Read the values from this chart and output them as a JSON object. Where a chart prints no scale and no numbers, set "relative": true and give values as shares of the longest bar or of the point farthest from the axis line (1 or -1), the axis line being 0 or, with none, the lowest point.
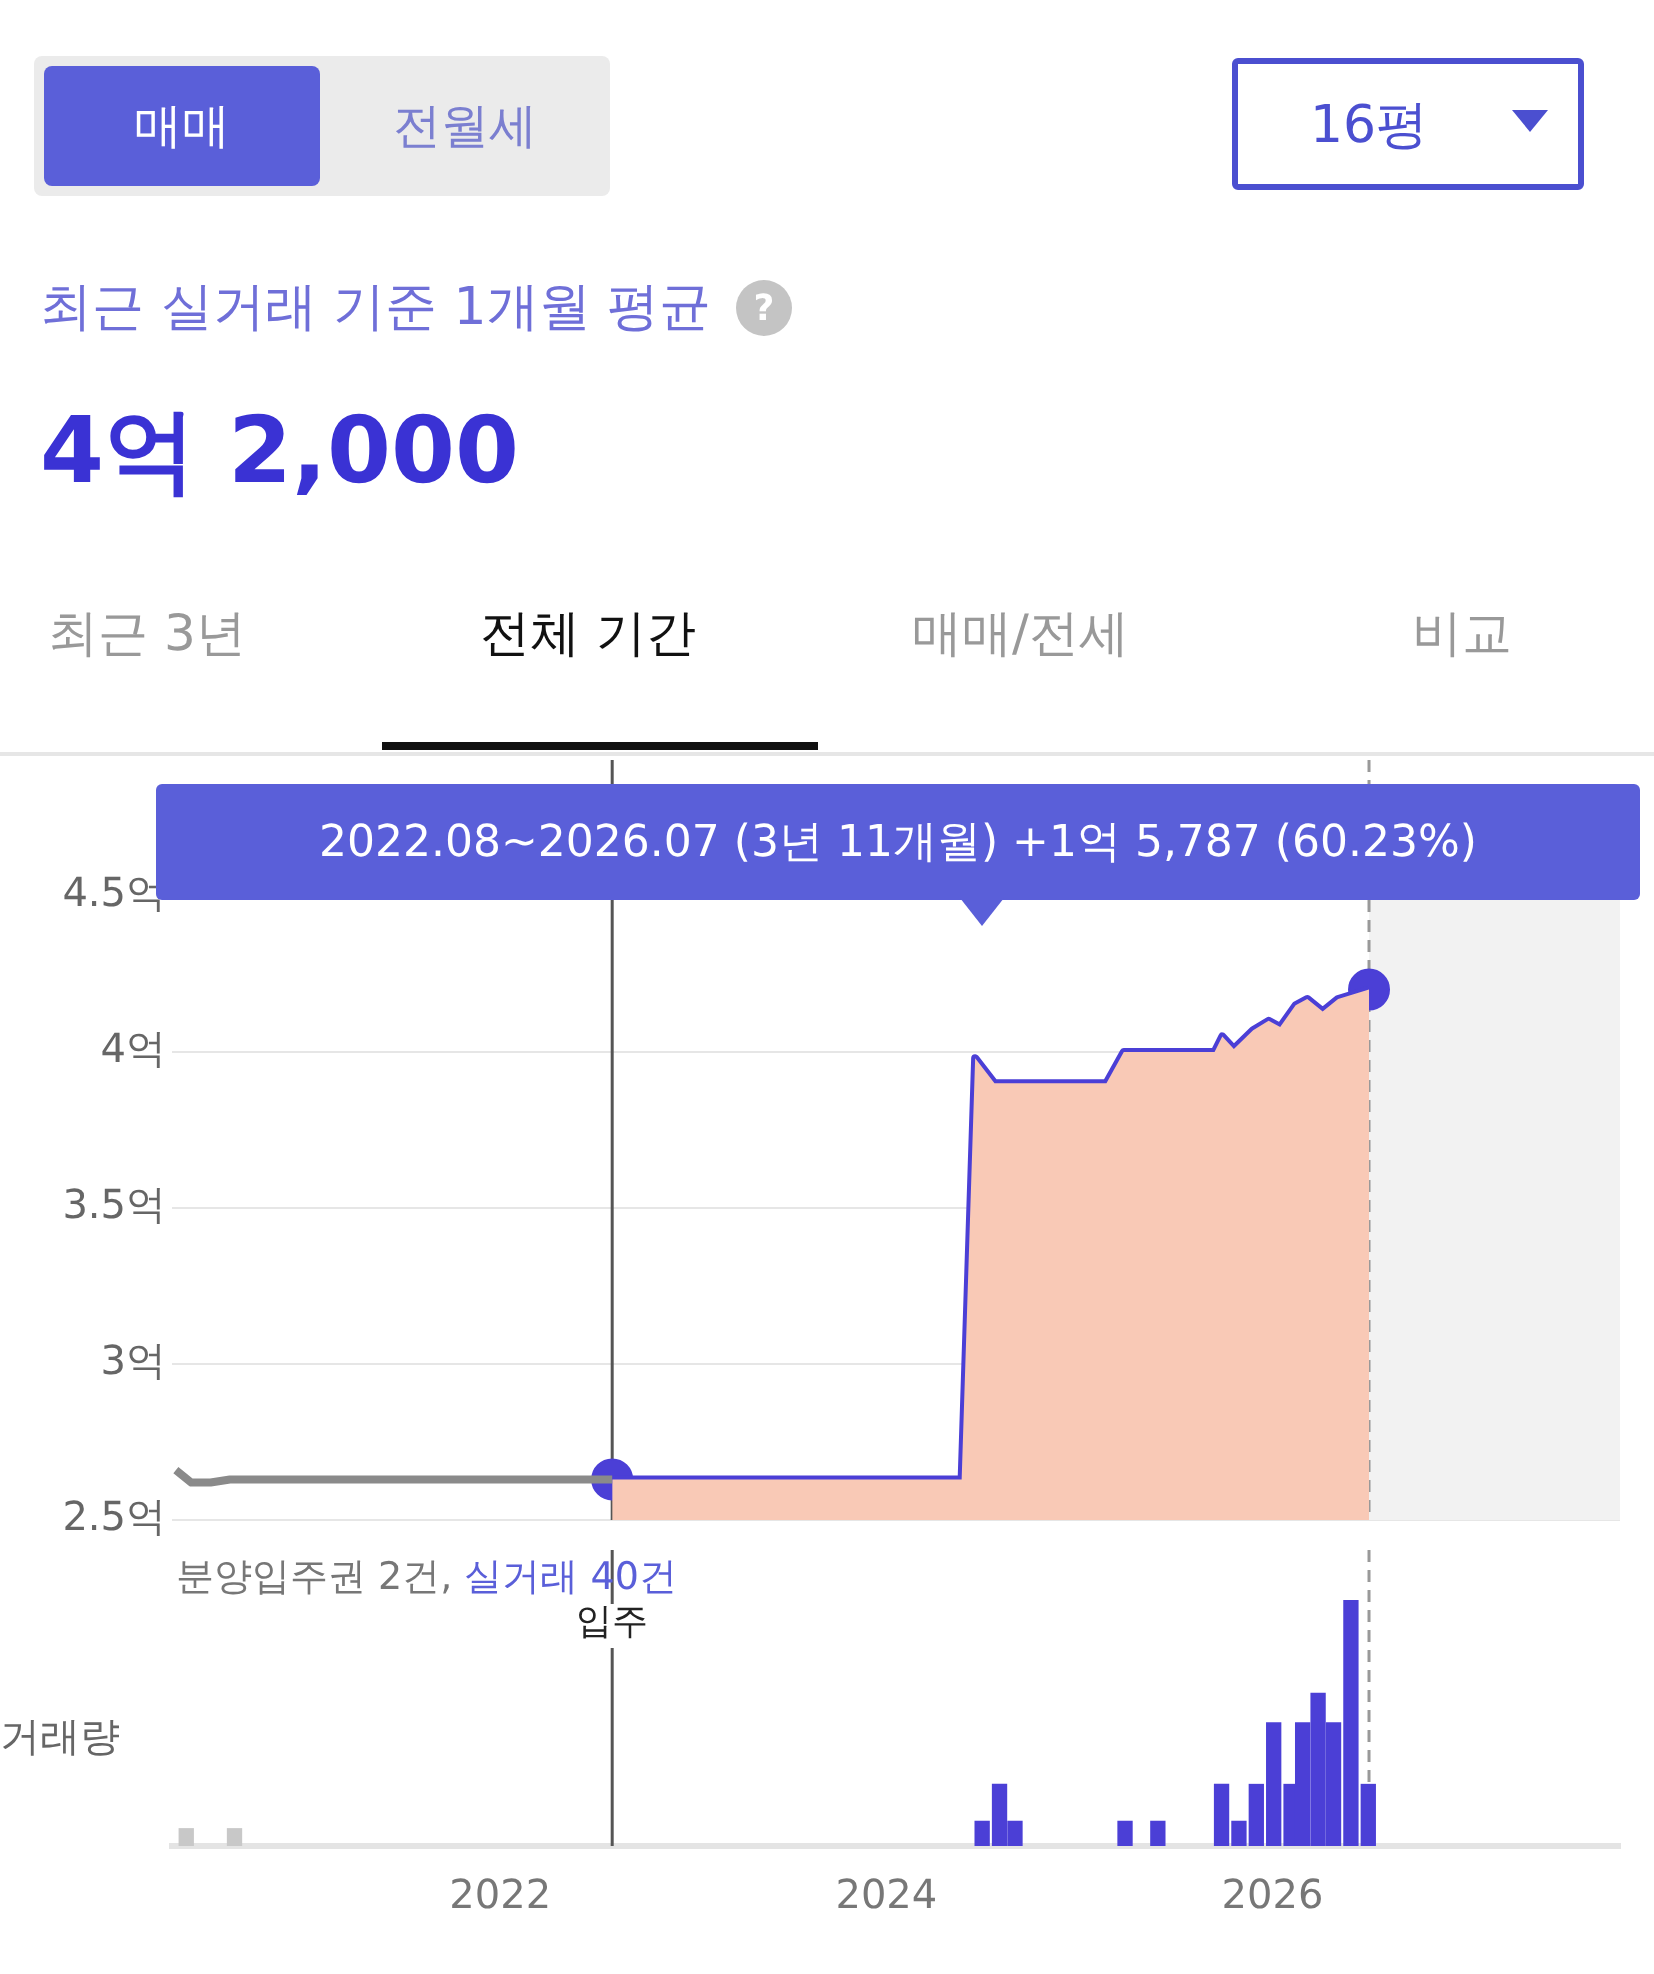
{
  "chart_data": [
    {
      "type": "area",
      "title": "최근 실거래 기준 1개월 평균",
      "subtitle": "4억 2,000",
      "annotations": [
        "매매",
        "전월세",
        "16평",
        "최근 3년",
        "전체 기간",
        "매매/전세",
        "비교",
        "2022.08~2026.07 (3년 11개월)   +1억 5,787 (60.23%)",
        "?"
      ],
      "xlim": [
        2020.3,
        2027.8
      ],
      "ylim": [
        2.5,
        4.5
      ],
      "yticks": [
        {
          "value": 2.5,
          "label": "2.5억"
        },
        {
          "value": 3,
          "label": "3억"
        },
        {
          "value": 3.5,
          "label": "3.5억"
        },
        {
          "value": 4,
          "label": "4억"
        },
        {
          "value": 4.5,
          "label": "4.5억"
        }
      ],
      "tick_labels": "y",
      "grid": "y",
      "legend": false,
      "series": [
        {
          "type": "line",
          "color": "#8a8a8a",
          "x": [
            2020.32,
            2020.4,
            2020.5,
            2020.6,
            2022.58
          ],
          "values": [
            2.66,
            2.62,
            2.62,
            2.63,
            2.63
          ]
        },
        {
          "color": "#f9c9b6",
          "x": [
            2022.58,
            2024.39,
            2024.46,
            2024.56,
            2025.14,
            2025.23,
            2025.7,
            2025.74,
            2025.8,
            2025.9,
            2025.98,
            2026.04,
            2026.12,
            2026.18,
            2026.26,
            2026.34,
            2026.5
          ],
          "values": [
            2.63,
            2.63,
            3.98,
            3.9,
            3.9,
            4.0,
            4.0,
            4.05,
            4.01,
            4.07,
            4.1,
            4.08,
            4.15,
            4.17,
            4.13,
            4.17,
            4.2
          ]
        },
        {
          "type": "line",
          "color": "#4b3fd6",
          "x": [
            2022.58,
            2024.39,
            2024.46,
            2024.56,
            2025.14,
            2025.23,
            2025.7,
            2025.74,
            2025.8,
            2025.9,
            2025.98,
            2026.04,
            2026.12,
            2026.18,
            2026.26,
            2026.34,
            2026.5
          ],
          "values": [
            2.63,
            2.63,
            3.98,
            3.9,
            3.9,
            4.0,
            4.0,
            4.05,
            4.01,
            4.07,
            4.1,
            4.08,
            4.15,
            4.17,
            4.13,
            4.17,
            4.2
          ]
        },
        {
          "type": "scatter",
          "color": "#4b3fd6",
          "marker": "circle",
          "x": [
            2022.58,
            2026.5
          ],
          "values": [
            2.63,
            4.2
          ]
        }
      ],
      "ref_lines": [
        {
          "axis": "x",
          "value": 2022.58,
          "color": "#555555"
        },
        {
          "axis": "x",
          "value": 2026.5,
          "color": "#999999",
          "line_style": "dashed"
        }
      ],
      "bands": [
        {
          "axis": "x",
          "from": 2026.5,
          "to": 2027.8,
          "color": "#f2f2f2"
        }
      ]
    },
    {
      "type": "bar",
      "relative": true,
      "ylabel": "거래량",
      "xlim": [
        2020.3,
        2027.8
      ],
      "xticks": [
        2022,
        2024,
        2026
      ],
      "tick_labels": "x",
      "legend": false,
      "annotations": [
        "분양입주권 2건, ",
        "실거래 40건"
      ],
      "ref_lines": [
        {
          "axis": "x",
          "value": 2022.58,
          "label": "입주",
          "color": "#555555"
        },
        {
          "axis": "x",
          "value": 2026.5,
          "color": "#999999",
          "line_style": "dashed"
        }
      ],
      "series": [
        {
          "color": "#c8c8c8",
          "x": [
            2020.41,
            2020.66
          ],
          "values": [
            0.07,
            0.07
          ]
        },
        {
          "color": "#4b3fd6",
          "x": [
            2024.46,
            2024.55,
            2024.63,
            2025.2,
            2025.37,
            2025.7,
            2025.79,
            2025.88,
            2025.97,
            2026.06,
            2026.12,
            2026.2,
            2026.28,
            2026.37,
            2026.46
          ],
          "values": [
            0.1,
            0.25,
            0.1,
            0.1,
            0.1,
            0.25,
            0.1,
            0.25,
            0.5,
            0.25,
            0.5,
            0.62,
            0.5,
            1,
            0.25
          ]
        }
      ]
    }
  ]
}
